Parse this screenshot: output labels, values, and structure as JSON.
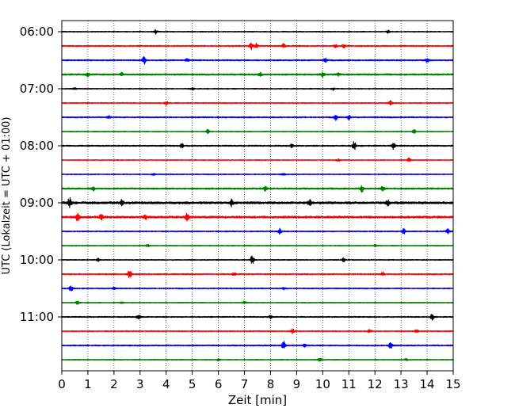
{
  "chart_data": {
    "type": "line",
    "title": "",
    "xlabel": "Zeit  [min]",
    "ylabel": "UTC (Lokalzeit = UTC + 01:00)",
    "xlim": [
      0,
      15
    ],
    "x_ticks": [
      "0",
      "1",
      "2",
      "3",
      "4",
      "5",
      "6",
      "7",
      "8",
      "9",
      "10",
      "11",
      "12",
      "13",
      "14",
      "15"
    ],
    "y_ticks": [
      "06:00",
      "07:00",
      "08:00",
      "09:00",
      "10:00",
      "11:00"
    ],
    "grid": "vertical dotted at each minute",
    "row_minutes": 15,
    "colors": [
      "#000000",
      "#ff0000",
      "#0000ff",
      "#008000"
    ],
    "series": [
      {
        "time": "06:00",
        "noise": 0.6,
        "events": [
          [
            3.6,
            2.5
          ],
          [
            12.5,
            2
          ]
        ]
      },
      {
        "time": "06:15",
        "noise": 0.8,
        "events": [
          [
            7.25,
            4.5
          ],
          [
            7.45,
            3
          ],
          [
            8.5,
            2.5
          ],
          [
            10.5,
            2
          ],
          [
            10.8,
            2.5
          ]
        ]
      },
      {
        "time": "06:30",
        "noise": 0.8,
        "events": [
          [
            3.15,
            5.5
          ],
          [
            4.8,
            2
          ],
          [
            10.1,
            2.5
          ],
          [
            14.0,
            2.5
          ]
        ]
      },
      {
        "time": "06:45",
        "noise": 1.0,
        "events": [
          [
            1.0,
            2
          ],
          [
            2.3,
            2
          ],
          [
            7.6,
            2.5
          ],
          [
            10.0,
            3
          ],
          [
            10.6,
            2
          ]
        ]
      },
      {
        "time": "07:00",
        "noise": 0.6,
        "events": [
          [
            0.5,
            1.5
          ],
          [
            5.0,
            1.5
          ],
          [
            10.4,
            1.5
          ]
        ]
      },
      {
        "time": "07:15",
        "noise": 0.7,
        "events": [
          [
            4.0,
            2.5
          ],
          [
            12.6,
            3
          ]
        ]
      },
      {
        "time": "07:30",
        "noise": 0.8,
        "events": [
          [
            1.8,
            2
          ],
          [
            10.5,
            4
          ],
          [
            11.0,
            3
          ]
        ]
      },
      {
        "time": "07:45",
        "noise": 0.6,
        "events": [
          [
            5.6,
            2.5
          ],
          [
            13.5,
            2.5
          ]
        ]
      },
      {
        "time": "08:00",
        "noise": 0.8,
        "events": [
          [
            4.6,
            2.5
          ],
          [
            11.2,
            5.5
          ],
          [
            12.7,
            4.5
          ],
          [
            8.8,
            2
          ]
        ]
      },
      {
        "time": "08:15",
        "noise": 0.6,
        "events": [
          [
            10.6,
            2
          ],
          [
            13.3,
            2.5
          ]
        ]
      },
      {
        "time": "08:30",
        "noise": 0.6,
        "events": [
          [
            3.5,
            1.5
          ],
          [
            8.5,
            1.5
          ]
        ]
      },
      {
        "time": "08:45",
        "noise": 1.0,
        "events": [
          [
            1.2,
            2.5
          ],
          [
            7.8,
            2.5
          ],
          [
            11.5,
            4
          ],
          [
            12.3,
            3.5
          ]
        ]
      },
      {
        "time": "09:00",
        "noise": 1.4,
        "events": [
          [
            0.3,
            6.5
          ],
          [
            2.3,
            3.5
          ],
          [
            6.5,
            4
          ],
          [
            9.5,
            3.5
          ],
          [
            12.5,
            3
          ]
        ]
      },
      {
        "time": "09:15",
        "noise": 1.3,
        "events": [
          [
            0.6,
            4.5
          ],
          [
            1.5,
            3.5
          ],
          [
            4.8,
            4
          ],
          [
            3.2,
            2.5
          ]
        ]
      },
      {
        "time": "09:30",
        "noise": 0.7,
        "events": [
          [
            8.35,
            4
          ],
          [
            13.1,
            3.5
          ],
          [
            14.8,
            3.5
          ]
        ]
      },
      {
        "time": "09:45",
        "noise": 0.6,
        "events": [
          [
            3.3,
            1.5
          ],
          [
            12.0,
            1.5
          ]
        ]
      },
      {
        "time": "10:00",
        "noise": 0.6,
        "events": [
          [
            7.3,
            6.5
          ],
          [
            1.4,
            2
          ],
          [
            10.8,
            2.5
          ]
        ]
      },
      {
        "time": "10:15",
        "noise": 0.8,
        "events": [
          [
            2.6,
            5
          ],
          [
            6.6,
            2
          ],
          [
            12.3,
            2
          ]
        ]
      },
      {
        "time": "10:30",
        "noise": 0.7,
        "events": [
          [
            0.35,
            4
          ],
          [
            2.0,
            1.5
          ],
          [
            8.5,
            1.5
          ]
        ]
      },
      {
        "time": "10:45",
        "noise": 0.6,
        "events": [
          [
            0.6,
            2.5
          ],
          [
            2.3,
            1.5
          ],
          [
            7.0,
            1.5
          ]
        ]
      },
      {
        "time": "11:00",
        "noise": 0.7,
        "events": [
          [
            2.95,
            3.5
          ],
          [
            8.0,
            2
          ],
          [
            14.2,
            4.5
          ]
        ]
      },
      {
        "time": "11:15",
        "noise": 0.7,
        "events": [
          [
            8.85,
            3
          ],
          [
            11.8,
            2
          ],
          [
            13.6,
            2
          ]
        ]
      },
      {
        "time": "11:30",
        "noise": 0.8,
        "events": [
          [
            8.5,
            5
          ],
          [
            12.6,
            4.5
          ],
          [
            9.3,
            2
          ]
        ]
      },
      {
        "time": "11:45",
        "noise": 0.6,
        "events": [
          [
            9.9,
            3
          ],
          [
            6.0,
            1.5
          ],
          [
            13.2,
            1.5
          ]
        ]
      }
    ]
  }
}
